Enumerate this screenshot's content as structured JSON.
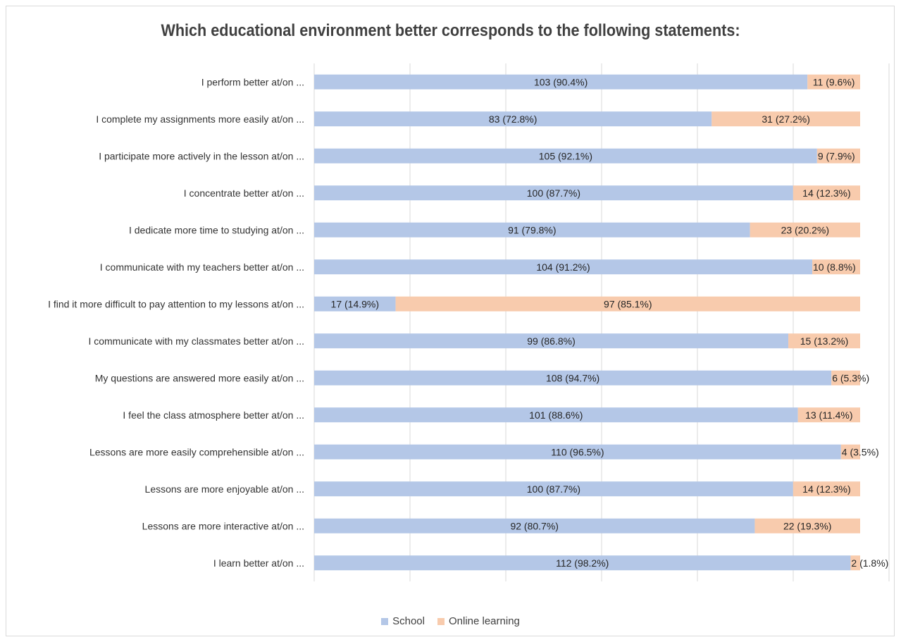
{
  "chart_data": {
    "type": "bar",
    "orientation": "horizontal",
    "stacking": "100%",
    "title": "Which educational environment better corresponds to the following statements:",
    "categories": [
      "I perform better at/on ...",
      "I complete my assignments more easily at/on ...",
      "I participate more actively in the lesson at/on ...",
      "I concentrate better at/on ...",
      "I dedicate more time to studying at/on ...",
      "I communicate with my teachers better at/on ...",
      "I find it more difficult to pay attention to my lessons at/on ...",
      "I communicate with my classmates better at/on ...",
      "My questions are answered more easily at/on ...",
      "I feel the class atmosphere better at/on ...",
      "Lessons are more easily comprehensible at/on ...",
      "Lessons are more enjoyable at/on ...",
      "Lessons are more interactive at/on ...",
      "I learn better at/on ..."
    ],
    "series": [
      {
        "name": "School",
        "color": "#b4c7e7",
        "values": [
          103,
          83,
          105,
          100,
          91,
          104,
          17,
          99,
          108,
          101,
          110,
          100,
          92,
          112
        ],
        "labels": [
          "103 (90.4%)",
          "83 (72.8%)",
          "105 (92.1%)",
          "100 (87.7%)",
          "91 (79.8%)",
          "104 (91.2%)",
          "17 (14.9%)",
          "99 (86.8%)",
          "108 (94.7%)",
          "101 (88.6%)",
          "110 (96.5%)",
          "100 (87.7%)",
          "92 (80.7%)",
          "112 (98.2%)"
        ]
      },
      {
        "name": "Online learning",
        "color": "#f8cbad",
        "values": [
          11,
          31,
          9,
          14,
          23,
          10,
          97,
          15,
          6,
          13,
          4,
          14,
          22,
          2
        ],
        "labels": [
          "11 (9.6%)",
          "31 (27.2%)",
          "9 (7.9%)",
          "14 (12.3%)",
          "23 (20.2%)",
          "10 (8.8%)",
          "97 (85.1%)",
          "15 (13.2%)",
          "6 (5.3%)",
          "13 (11.4%)",
          "4 (3.5%)",
          "14 (12.3%)",
          "22 (19.3%)",
          "2 (1.8%)"
        ]
      }
    ],
    "xlim": [
      0,
      100
    ],
    "grid": true,
    "gridline_color": "#d9d9d9",
    "legend_position": "bottom"
  }
}
